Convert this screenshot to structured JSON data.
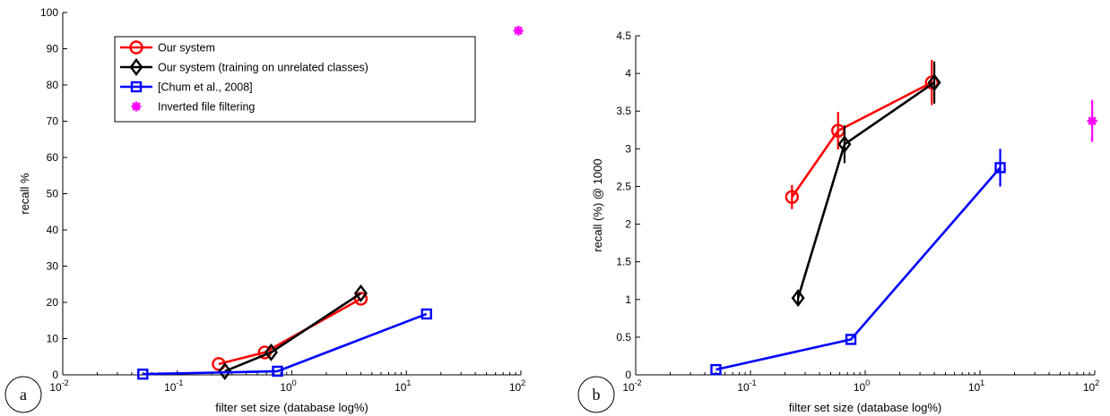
{
  "chart_data": [
    {
      "panel_label": "a",
      "type": "line",
      "xscale": "log",
      "xlabel": "filter set size (database log%)",
      "ylabel": "recall %",
      "xlim": [
        0.01,
        100
      ],
      "ylim": [
        0,
        100
      ],
      "xtick_labels": [
        [
          "10",
          "-2"
        ],
        [
          "10",
          "-1"
        ],
        [
          "10",
          "0"
        ],
        [
          "10",
          "1"
        ],
        [
          "10",
          "2"
        ]
      ],
      "ytick_labels": [
        "0",
        "10",
        "20",
        "30",
        "40",
        "50",
        "60",
        "70",
        "80",
        "90",
        "100"
      ],
      "legend": "top-left",
      "series": [
        {
          "name": "Our system",
          "color": "#ff0000",
          "marker": "circle",
          "x": [
            0.23,
            0.58,
            4.0
          ],
          "y": [
            3.0,
            6.2,
            21.0
          ],
          "err": [
            0,
            0,
            0
          ]
        },
        {
          "name": "Our system (training on unrelated classes)",
          "color": "#000000",
          "marker": "diamond",
          "x": [
            0.26,
            0.66,
            4.0
          ],
          "y": [
            1.0,
            6.2,
            22.5
          ],
          "err": [
            0,
            0,
            0
          ]
        },
        {
          "name": "[Chum et al., 2008]",
          "color": "#0000ff",
          "marker": "square",
          "x": [
            0.05,
            0.75,
            15.0
          ],
          "y": [
            0.2,
            1.0,
            16.8
          ],
          "err": [
            0,
            0,
            0
          ]
        },
        {
          "name": "Inverted file filtering",
          "color": "#ff00ff",
          "marker": "star",
          "x": [
            95.0
          ],
          "y": [
            95.0
          ],
          "err": [
            0
          ]
        }
      ]
    },
    {
      "panel_label": "b",
      "type": "line",
      "xscale": "log",
      "xlabel": "filter set size (database log%)",
      "ylabel": "recall (%) @ 1000",
      "xlim": [
        0.01,
        100
      ],
      "ylim": [
        0,
        4.5
      ],
      "xtick_labels": [
        [
          "10",
          "-2"
        ],
        [
          "10",
          "-1"
        ],
        [
          "10",
          "0"
        ],
        [
          "10",
          "1"
        ],
        [
          "10",
          "2"
        ]
      ],
      "ytick_labels": [
        "0",
        "0.5",
        "1",
        "1.5",
        "2",
        "2.5",
        "3",
        "3.5",
        "4",
        "4.5"
      ],
      "series": [
        {
          "name": "Our system",
          "color": "#ff0000",
          "marker": "circle",
          "x": [
            0.23,
            0.58,
            3.8
          ],
          "y": [
            2.36,
            3.24,
            3.88
          ],
          "err": [
            0.16,
            0.25,
            0.3
          ]
        },
        {
          "name": "Our system (training on unrelated classes)",
          "color": "#000000",
          "marker": "diamond",
          "x": [
            0.26,
            0.66,
            4.0
          ],
          "y": [
            1.02,
            3.06,
            3.88
          ],
          "err": [
            0.1,
            0.25,
            0.28
          ]
        },
        {
          "name": "[Chum et al., 2008]",
          "color": "#0000ff",
          "marker": "square",
          "x": [
            0.05,
            0.75,
            15.0
          ],
          "y": [
            0.07,
            0.47,
            2.75
          ],
          "err": [
            0,
            0,
            0.25
          ]
        },
        {
          "name": "Inverted file filtering",
          "color": "#ff00ff",
          "marker": "star",
          "x": [
            95.0
          ],
          "y": [
            3.37
          ],
          "err": [
            0.28
          ]
        }
      ]
    }
  ]
}
